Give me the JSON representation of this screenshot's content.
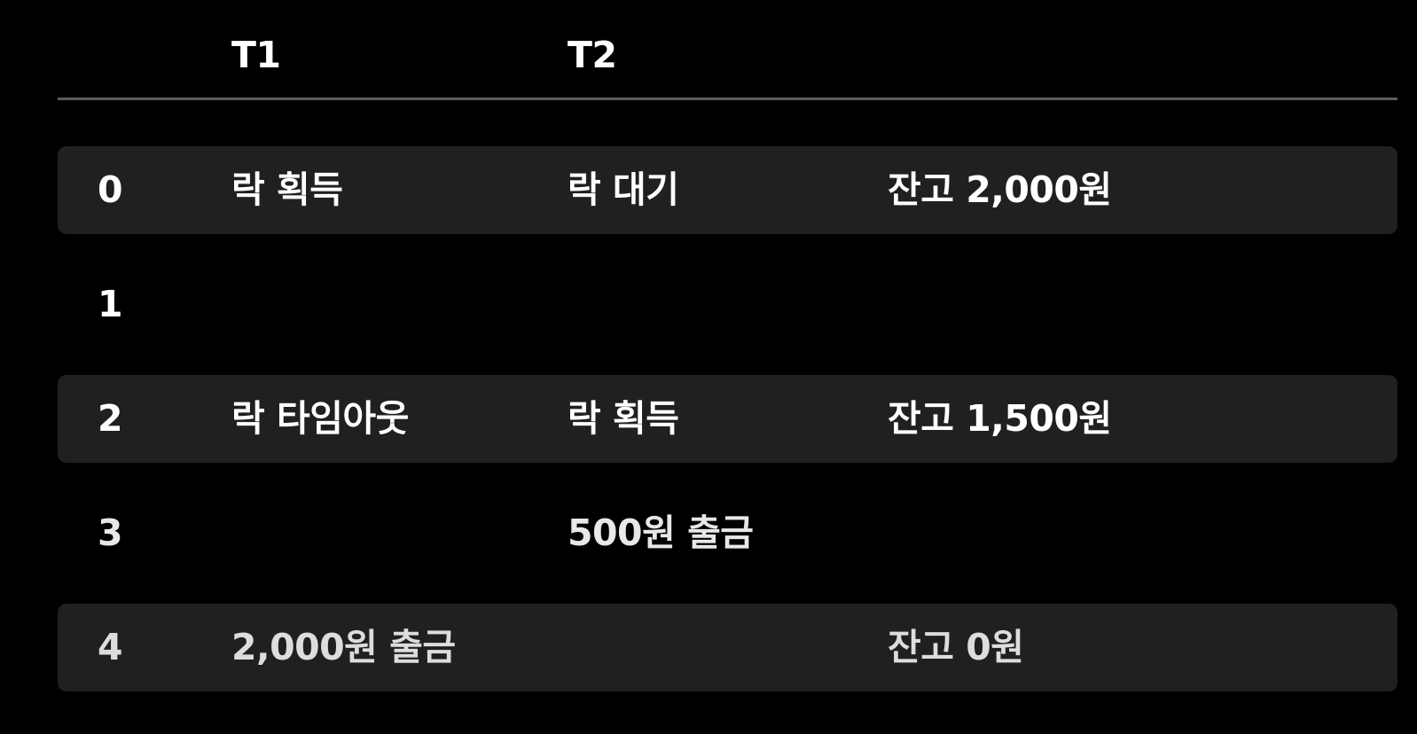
{
  "header": {
    "step": "",
    "t1": "T1",
    "t2": "T2",
    "note": ""
  },
  "rows": [
    {
      "step": "0",
      "t1": "락 획득",
      "t2": "락 대기",
      "note": "잔고 2,000원",
      "shaded": true
    },
    {
      "step": "1",
      "t1": "",
      "t2": "",
      "note": "",
      "shaded": false
    },
    {
      "step": "2",
      "t1": "락 타임아웃",
      "t2": "락 획득",
      "note": "잔고 1,500원",
      "shaded": true
    },
    {
      "step": "3",
      "t1": "",
      "t2": "500원 출금",
      "note": "",
      "shaded": false
    },
    {
      "step": "4",
      "t1": "2,000원 출금",
      "t2": "",
      "note": "잔고 0원",
      "shaded": true
    }
  ],
  "colors": {
    "background": "#000000",
    "row_shade": "#202020",
    "divider": "#5c5c5c",
    "text": "#ffffff"
  }
}
